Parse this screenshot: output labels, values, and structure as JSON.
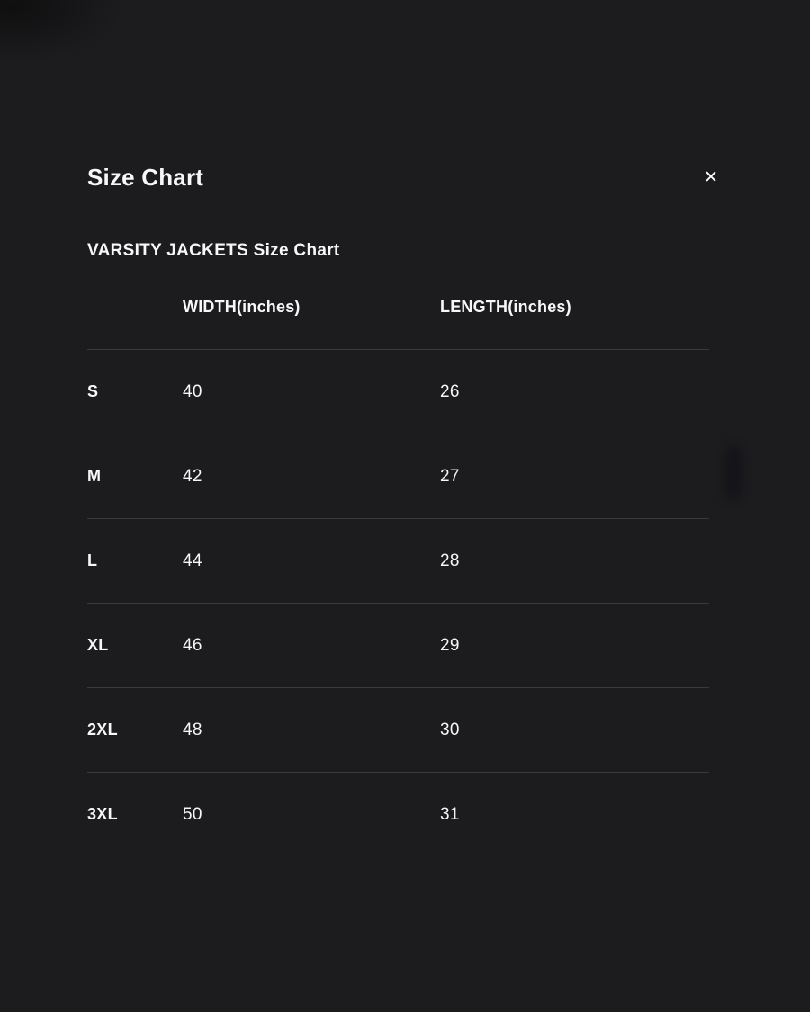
{
  "colors": {
    "background": "#1c1b1d",
    "text": "#f7f7f7",
    "divider": "#3a393b"
  },
  "modal": {
    "title": "Size Chart",
    "close_icon_glyph": "✕"
  },
  "size_chart": {
    "subtitle": "VARSITY JACKETS Size Chart",
    "columns": [
      "",
      "WIDTH(inches)",
      "LENGTH(inches)"
    ],
    "rows": [
      {
        "size": "S",
        "width": "40",
        "length": "26"
      },
      {
        "size": "M",
        "width": "42",
        "length": "27"
      },
      {
        "size": "L",
        "width": "44",
        "length": "28"
      },
      {
        "size": "XL",
        "width": "46",
        "length": "29"
      },
      {
        "size": "2XL",
        "width": "48",
        "length": "30"
      },
      {
        "size": "3XL",
        "width": "50",
        "length": "31"
      }
    ]
  }
}
